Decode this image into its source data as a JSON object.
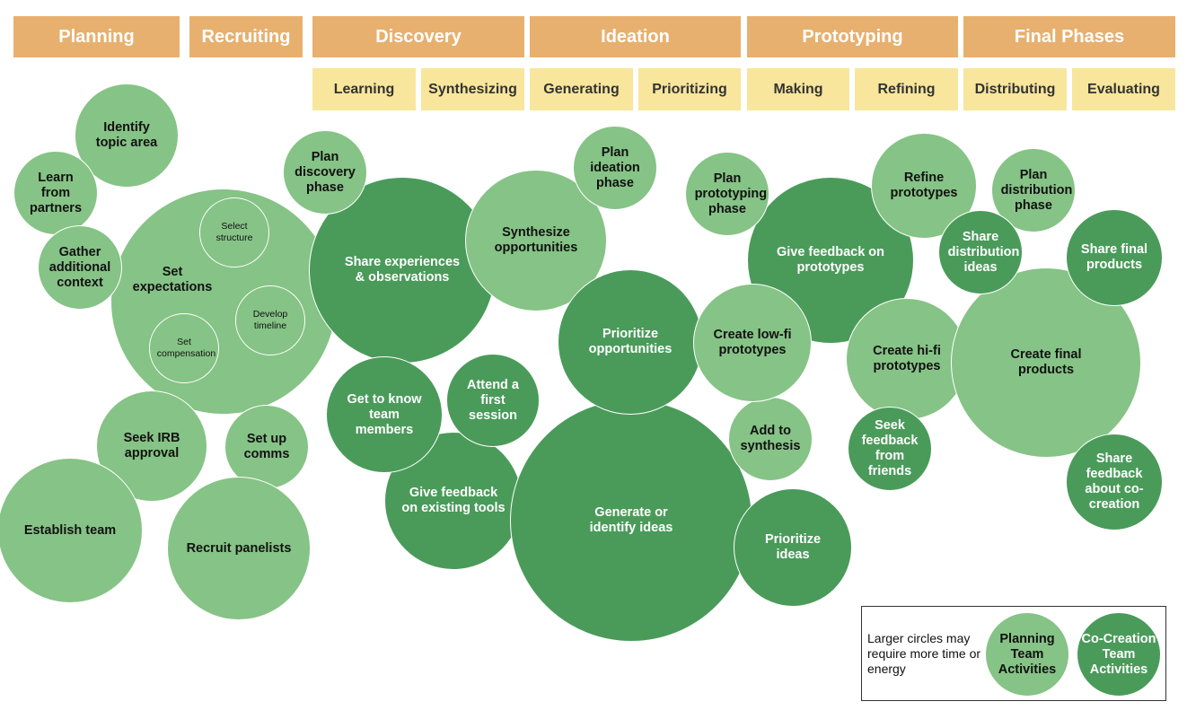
{
  "phases": [
    "Planning",
    "Recruiting",
    "Discovery",
    "Ideation",
    "Prototyping",
    "Final Phases"
  ],
  "subphases": [
    "Learning",
    "Synthesizing",
    "Generating",
    "Prioritizing",
    "Making",
    "Refining",
    "Distributing",
    "Evaluating"
  ],
  "activities": [
    "Identify topic area",
    "Learn from partners",
    "Gather additional context",
    "Set expectations",
    "Select structure",
    "Develop timeline",
    "Set compensation",
    "Plan discovery phase",
    "Share experiences & observations",
    "Synthesize opportunities",
    "Plan ideation phase",
    "Prioritize opportunities",
    "Get to know team members",
    "Attend a first session",
    "Give feedback on existing tools",
    "Generate or identify ideas",
    "Create low-fi prototypes",
    "Add to synthesis",
    "Prioritize ideas",
    "Plan prototyping phase",
    "Give feedback on prototypes",
    "Refine prototypes",
    "Create hi-fi prototypes",
    "Seek feedback from friends",
    "Plan distribution phase",
    "Share distribution ideas",
    "Share final products",
    "Create final products",
    "Share feedback about co-creation",
    "Seek IRB approval",
    "Set up comms",
    "Establish team",
    "Recruit panelists"
  ],
  "legend": {
    "note": "Larger circles may require more time or energy",
    "items": [
      "Planning Team Activities",
      "Co-Creation Team Activities"
    ]
  }
}
